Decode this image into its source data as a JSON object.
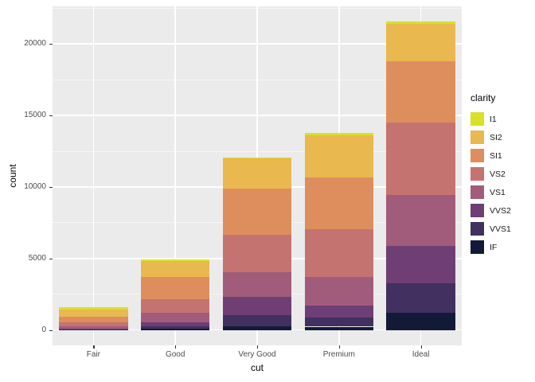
{
  "chart_data": {
    "type": "bar",
    "stacked": true,
    "title": "",
    "xlabel": "cut",
    "ylabel": "count",
    "legend_title": "clarity",
    "legend_position": "right",
    "categories": [
      "Fair",
      "Good",
      "Very Good",
      "Premium",
      "Ideal"
    ],
    "series": [
      {
        "name": "I1",
        "color": "#D8E125",
        "values": [
          210,
          96,
          84,
          205,
          146
        ]
      },
      {
        "name": "SI2",
        "color": "#E9B84F",
        "values": [
          466,
          1081,
          2100,
          2949,
          2598
        ]
      },
      {
        "name": "SI1",
        "color": "#DE8E5D",
        "values": [
          408,
          1560,
          3240,
          3575,
          4282
        ]
      },
      {
        "name": "VS2",
        "color": "#C57370",
        "values": [
          261,
          978,
          2591,
          3357,
          5071
        ]
      },
      {
        "name": "VS1",
        "color": "#A15C7B",
        "values": [
          170,
          648,
          1775,
          1989,
          3589
        ]
      },
      {
        "name": "VVS2",
        "color": "#6E3E74",
        "values": [
          69,
          286,
          1235,
          870,
          2606
        ]
      },
      {
        "name": "VVS1",
        "color": "#423060",
        "values": [
          17,
          186,
          789,
          616,
          2047
        ]
      },
      {
        "name": "IF",
        "color": "#131A38",
        "values": [
          9,
          71,
          268,
          230,
          1212
        ]
      }
    ],
    "y_ticks": [
      0,
      5000,
      10000,
      15000,
      20000
    ],
    "ylim": [
      0,
      21551
    ],
    "y_expansion": 0.05,
    "bar_width_fraction": 0.84,
    "panel_bg": "#EBEBEB",
    "grid_color": "#FFFFFF",
    "tick_label_color": "#4D4D4D"
  }
}
